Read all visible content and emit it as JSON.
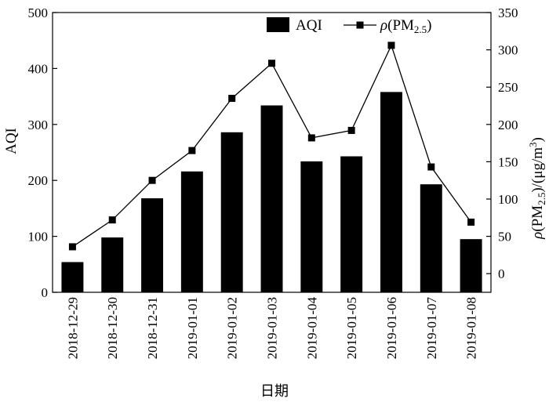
{
  "chart_data": {
    "type": "bar+line",
    "categories": [
      "2018-12-29",
      "2018-12-30",
      "2018-12-31",
      "2019-01-01",
      "2019-01-02",
      "2019-01-03",
      "2019-01-04",
      "2019-01-05",
      "2019-01-06",
      "2019-01-07",
      "2019-01-08"
    ],
    "series": [
      {
        "name": "AQI",
        "type": "bar",
        "axis": "left",
        "color": "#000000",
        "values": [
          54,
          98,
          168,
          216,
          286,
          334,
          234,
          243,
          358,
          193,
          95
        ]
      },
      {
        "name": "ρ(PM2.5)",
        "type": "line",
        "axis": "right",
        "color": "#000000",
        "marker": "square",
        "values": [
          36,
          72,
          125,
          165,
          235,
          282,
          182,
          192,
          306,
          143,
          69
        ]
      }
    ],
    "xlabel": "日期",
    "ylabel_left": "AQI",
    "ylabel_right": "ρ(PM2.5)/(μg/m3)",
    "ylim_left": [
      0,
      500
    ],
    "ylim_right": [
      -25,
      350
    ],
    "yticks_left": [
      0,
      100,
      200,
      300,
      400,
      500
    ],
    "yticks_right": [
      0,
      50,
      100,
      150,
      200,
      250,
      300,
      350
    ],
    "legend": {
      "position": "top-right",
      "bar_label": "AQI",
      "line_label_symbol": "ρ",
      "line_label_main": "(PM",
      "line_label_sub": "2.5",
      "line_label_end": ")"
    },
    "right_label_parts": {
      "rho": "ρ",
      "pm": "(PM",
      "sub": "2.5",
      "unit": ")/(μg/m",
      "sup": "3",
      "end": ")"
    },
    "grid": false
  }
}
